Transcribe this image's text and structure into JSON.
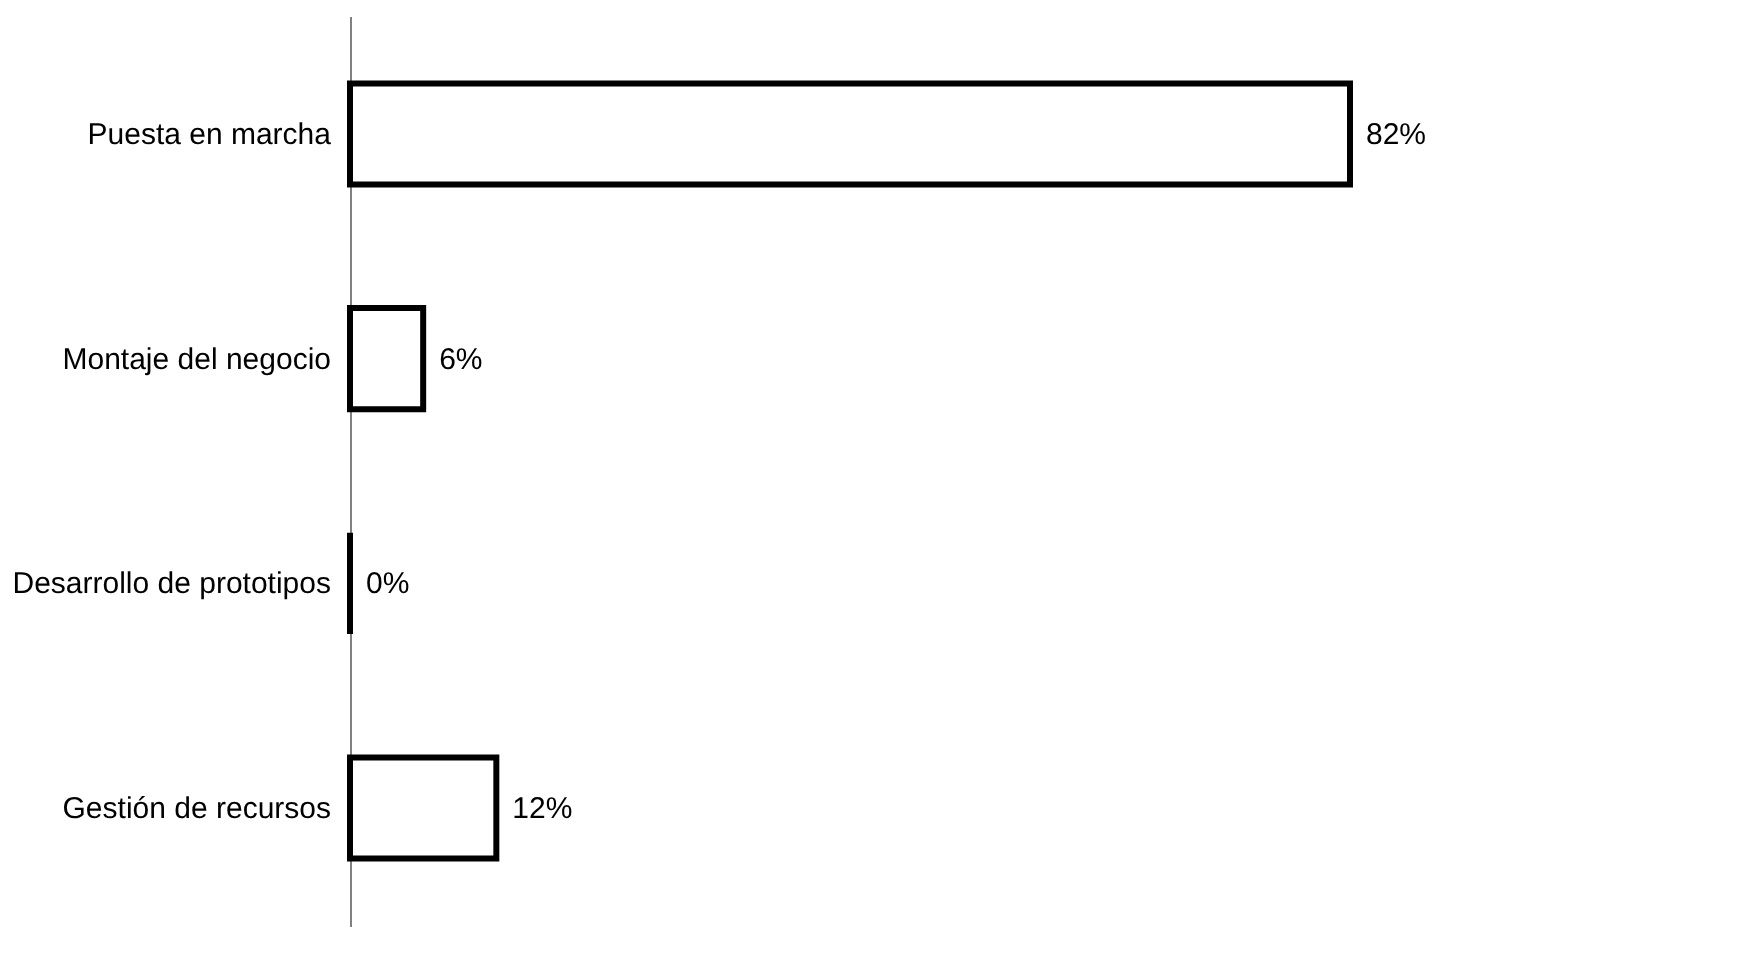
{
  "chart_data": {
    "type": "bar",
    "orientation": "horizontal",
    "categories": [
      "Puesta en marcha",
      "Montaje del negocio",
      "Desarrollo de prototipos",
      "Gestión de recursos"
    ],
    "values": [
      82,
      6,
      0,
      12
    ],
    "value_labels": [
      "82%",
      "6%",
      "0%",
      "12%"
    ],
    "color": "#000000"
  }
}
